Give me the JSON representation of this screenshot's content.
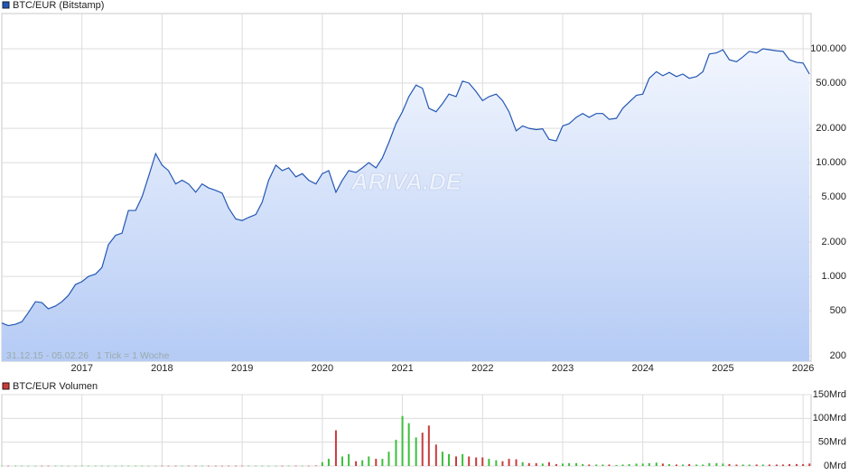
{
  "chart_data": [
    {
      "type": "area",
      "legend": "BTC/EUR (Bitstamp)",
      "note": "31.12.15 - 05.02.26   1 Tick = 1 Woche",
      "watermark": "ARIVA.DE",
      "color": "#2357b4",
      "log_scale": true,
      "grid": true,
      "x": [
        2016,
        2016.08,
        2016.17,
        2016.25,
        2016.33,
        2016.42,
        2016.5,
        2016.58,
        2016.67,
        2016.75,
        2016.83,
        2016.92,
        2017,
        2017.08,
        2017.17,
        2017.25,
        2017.33,
        2017.42,
        2017.5,
        2017.58,
        2017.67,
        2017.75,
        2017.83,
        2017.92,
        2018,
        2018.08,
        2018.17,
        2018.25,
        2018.33,
        2018.42,
        2018.5,
        2018.58,
        2018.67,
        2018.75,
        2018.83,
        2018.92,
        2019,
        2019.08,
        2019.17,
        2019.25,
        2019.33,
        2019.42,
        2019.5,
        2019.58,
        2019.67,
        2019.75,
        2019.83,
        2019.92,
        2020,
        2020.08,
        2020.17,
        2020.25,
        2020.33,
        2020.42,
        2020.5,
        2020.58,
        2020.67,
        2020.75,
        2020.83,
        2020.92,
        2021,
        2021.08,
        2021.17,
        2021.25,
        2021.33,
        2021.42,
        2021.5,
        2021.58,
        2021.67,
        2021.75,
        2021.83,
        2021.92,
        2022,
        2022.08,
        2022.17,
        2022.25,
        2022.33,
        2022.42,
        2022.5,
        2022.58,
        2022.67,
        2022.75,
        2022.83,
        2022.92,
        2023,
        2023.08,
        2023.17,
        2023.25,
        2023.33,
        2023.42,
        2023.5,
        2023.58,
        2023.67,
        2023.75,
        2023.83,
        2023.92,
        2024,
        2024.08,
        2024.17,
        2024.25,
        2024.33,
        2024.42,
        2024.5,
        2024.58,
        2024.67,
        2024.75,
        2024.83,
        2024.92,
        2025,
        2025.08,
        2025.17,
        2025.25,
        2025.33,
        2025.42,
        2025.5,
        2025.58,
        2025.67,
        2025.75,
        2025.83,
        2025.92,
        2026,
        2026.08
      ],
      "values": [
        390,
        370,
        380,
        400,
        480,
        600,
        590,
        520,
        550,
        600,
        680,
        850,
        900,
        1000,
        1050,
        1200,
        1900,
        2300,
        2400,
        3800,
        3800,
        5000,
        7500,
        12000,
        9500,
        8500,
        6500,
        7000,
        6500,
        5500,
        6500,
        6000,
        5700,
        5400,
        4000,
        3200,
        3100,
        3300,
        3500,
        4500,
        7000,
        9500,
        8500,
        9000,
        7500,
        8000,
        7000,
        6500,
        8000,
        8500,
        5500,
        7000,
        8500,
        8200,
        9000,
        10000,
        9000,
        11000,
        15000,
        22000,
        28000,
        38000,
        48000,
        45000,
        30000,
        28000,
        33000,
        40000,
        38000,
        52000,
        50000,
        42000,
        35000,
        38000,
        40000,
        35000,
        28000,
        19000,
        21000,
        20000,
        19500,
        19800,
        16000,
        15500,
        21000,
        22000,
        25000,
        27000,
        25000,
        27000,
        27000,
        24000,
        24500,
        30000,
        34000,
        39000,
        40000,
        55000,
        63000,
        58000,
        62000,
        57000,
        60000,
        55000,
        57000,
        63000,
        90000,
        92000,
        98000,
        80000,
        77000,
        85000,
        95000,
        92000,
        100000,
        98000,
        96000,
        95000,
        80000,
        76000,
        75000,
        60000
      ],
      "xlim": [
        2016,
        2026.1
      ],
      "xticks": [
        2017,
        2018,
        2019,
        2020,
        2021,
        2022,
        2023,
        2024,
        2025,
        2026
      ],
      "ylim": [
        180,
        204000
      ],
      "yticks": [
        {
          "value": 100000,
          "label": "100.000"
        },
        {
          "value": 50000,
          "label": "50.000"
        },
        {
          "value": 20000,
          "label": "20.000"
        },
        {
          "value": 10000,
          "label": "10.000"
        },
        {
          "value": 5000,
          "label": "5.000"
        },
        {
          "value": 2000,
          "label": "2.000"
        },
        {
          "value": 1000,
          "label": "1.000"
        },
        500,
        200
      ]
    },
    {
      "type": "bar",
      "legend": "BTC/EUR Volumen",
      "legend_color": "#c83c3c",
      "up_color": "#3cbf3c",
      "down_color": "#c83c3c",
      "grid": true,
      "values": [
        0.5,
        0.5,
        0.5,
        0.5,
        0.5,
        0.5,
        0.5,
        0.5,
        0.5,
        0.5,
        0.5,
        0.5,
        0.5,
        0.5,
        0.5,
        0.5,
        0.5,
        0.5,
        0.5,
        0.5,
        0.5,
        0.5,
        0.5,
        0.5,
        0.5,
        0.5,
        0.5,
        0.5,
        0.5,
        0.5,
        0.5,
        0.5,
        0.5,
        0.5,
        0.5,
        0.5,
        0.5,
        0.5,
        0.5,
        0.5,
        0.5,
        0.5,
        0.5,
        0.5,
        0.5,
        0.5,
        0.5,
        1,
        8,
        15,
        75,
        20,
        25,
        10,
        12,
        20,
        15,
        15,
        30,
        55,
        105,
        90,
        60,
        70,
        85,
        45,
        30,
        25,
        20,
        25,
        20,
        18,
        18,
        15,
        12,
        10,
        15,
        14,
        8,
        6,
        6,
        5,
        8,
        4,
        5,
        6,
        6,
        4,
        3,
        3,
        3,
        3,
        2,
        3,
        4,
        5,
        5,
        6,
        7,
        5,
        4,
        3,
        3,
        4,
        3,
        3,
        6,
        6,
        5,
        4,
        3,
        3,
        3,
        3,
        3,
        3,
        3,
        3,
        4,
        4,
        4,
        5
      ],
      "ylim": [
        0,
        150
      ],
      "yticks": [
        {
          "value": 150,
          "label": "150Mrd"
        },
        {
          "value": 100,
          "label": "100Mrd"
        },
        {
          "value": 50,
          "label": "50Mrd"
        },
        {
          "value": 0,
          "label": "0Mrd"
        }
      ]
    }
  ]
}
